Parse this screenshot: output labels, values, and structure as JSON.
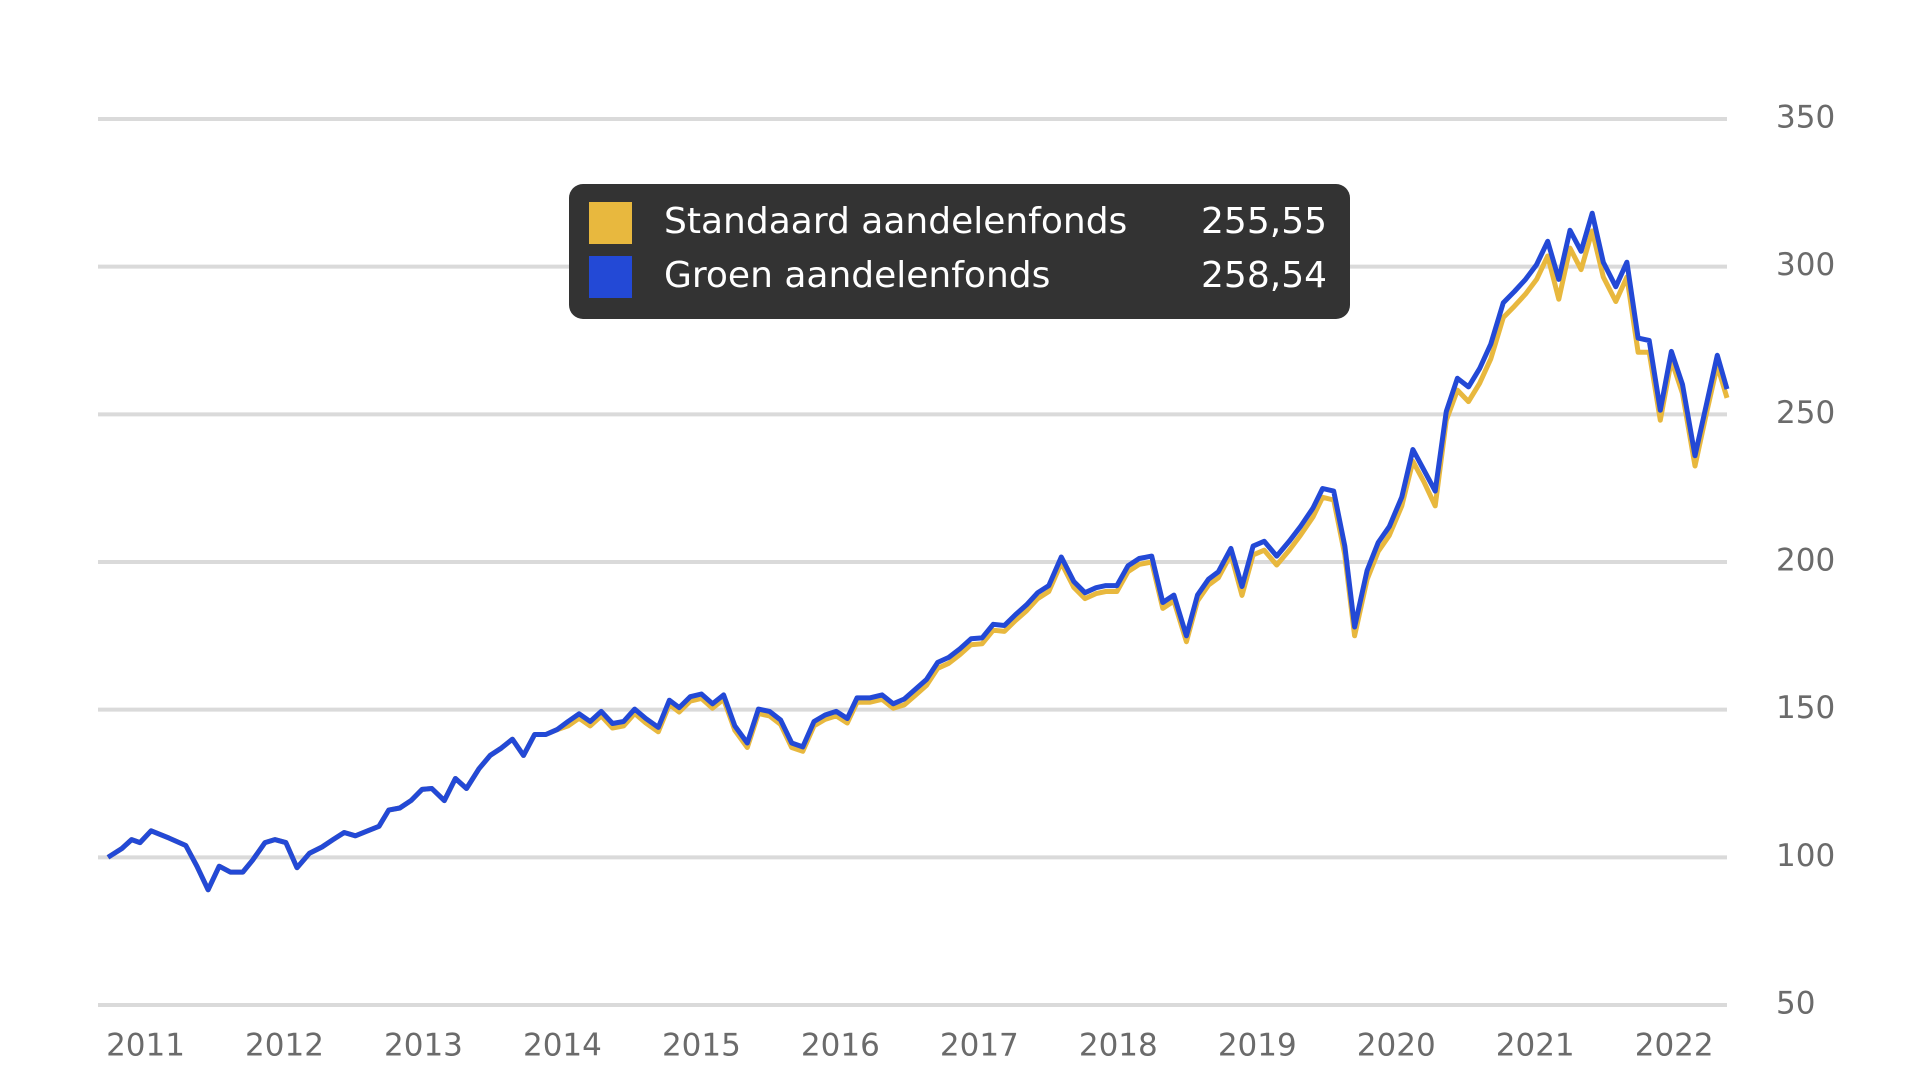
{
  "chart_data": {
    "type": "line",
    "x": [
      2010.73,
      2010.83,
      2010.9,
      2010.96,
      2011.04,
      2011.17,
      2011.29,
      2011.37,
      2011.45,
      2011.53,
      2011.61,
      2011.7,
      2011.77,
      2011.86,
      2011.93,
      2012.01,
      2012.09,
      2012.18,
      2012.27,
      2012.35,
      2012.43,
      2012.51,
      2012.59,
      2012.68,
      2012.75,
      2012.83,
      2012.91,
      2012.99,
      2013.06,
      2013.15,
      2013.23,
      2013.31,
      2013.4,
      2013.48,
      2013.56,
      2013.64,
      2013.72,
      2013.8,
      2013.88,
      2013.96,
      2014.04,
      2014.12,
      2014.2,
      2014.28,
      2014.36,
      2014.44,
      2014.52,
      2014.6,
      2014.69,
      2014.77,
      2014.84,
      2014.92,
      2015.0,
      2015.08,
      2015.16,
      2015.24,
      2015.33,
      2015.41,
      2015.49,
      2015.57,
      2015.65,
      2015.73,
      2015.81,
      2015.89,
      2015.97,
      2016.05,
      2016.12,
      2016.21,
      2016.3,
      2016.38,
      2016.46,
      2016.54,
      2016.62,
      2016.7,
      2016.78,
      2016.86,
      2016.94,
      2017.02,
      2017.1,
      2017.18,
      2017.26,
      2017.34,
      2017.42,
      2017.5,
      2017.59,
      2017.68,
      2017.76,
      2017.84,
      2017.91,
      2017.99,
      2018.07,
      2018.15,
      2018.24,
      2018.32,
      2018.4,
      2018.49,
      2018.57,
      2018.65,
      2018.72,
      2018.81,
      2018.89,
      2018.97,
      2019.05,
      2019.14,
      2019.23,
      2019.31,
      2019.4,
      2019.47,
      2019.55,
      2019.63,
      2019.7,
      2019.79,
      2019.87,
      2019.95,
      2020.04,
      2020.12,
      2020.2,
      2020.28,
      2020.36,
      2020.44,
      2020.52,
      2020.6,
      2020.68,
      2020.77,
      2020.85,
      2020.93,
      2021.01,
      2021.09,
      2021.17,
      2021.25,
      2021.33,
      2021.41,
      2021.49,
      2021.58,
      2021.66,
      2021.74,
      2021.82,
      2021.9,
      2021.98,
      2022.06,
      2022.15,
      2022.23,
      2022.31,
      2022.38
    ],
    "series": [
      {
        "name": "Standaard aandelenfonds",
        "color": "#e8b83e",
        "values": [
          100,
          103,
          106,
          105,
          109,
          106.5,
          104,
          97,
          89,
          97,
          95,
          95,
          99,
          105,
          106,
          105,
          96.5,
          101.4,
          103.5,
          106,
          108.4,
          107.3,
          108.8,
          110.5,
          116,
          116.7,
          119.2,
          123,
          123.3,
          119.2,
          126.7,
          123.3,
          130,
          134.5,
          137,
          140,
          134.5,
          141.6,
          141.6,
          143.2,
          144.5,
          147.1,
          144.5,
          147.9,
          143.8,
          144.5,
          148.7,
          145.5,
          142.5,
          151.7,
          149.2,
          152.9,
          153.8,
          150.5,
          153.5,
          143,
          137.2,
          148.7,
          147.9,
          145,
          137.2,
          135.9,
          144.5,
          146.7,
          147.9,
          145.5,
          152.5,
          152.5,
          153.5,
          150.5,
          151.6,
          154.9,
          158.2,
          164,
          165.7,
          168.6,
          172,
          172.3,
          176.9,
          176.5,
          180.2,
          183.5,
          187.6,
          190,
          199.7,
          191.4,
          187.6,
          189.3,
          190,
          190,
          196.7,
          199.2,
          200,
          184.3,
          186.8,
          173,
          186.8,
          192.2,
          194.7,
          202.6,
          188.7,
          202.4,
          204,
          199,
          204,
          209,
          215.2,
          221.9,
          221,
          202.4,
          175,
          194.1,
          203.6,
          209,
          219,
          234.1,
          227.1,
          219,
          248,
          258.2,
          254.3,
          260.5,
          268.8,
          282.8,
          286.6,
          290.7,
          295.7,
          303.6,
          289,
          306.3,
          299,
          312.1,
          296.5,
          288.2,
          296.5,
          271,
          271,
          248,
          268.3,
          257.1,
          232.5,
          250,
          266.5,
          255.55
        ]
      },
      {
        "name": "Groen aandelenfonds",
        "color": "#2349d6",
        "values": [
          100,
          103,
          106,
          105,
          109,
          106.5,
          104,
          97,
          89,
          97,
          95,
          95,
          99,
          105,
          106,
          105,
          96.5,
          101.4,
          103.5,
          106,
          108.4,
          107.3,
          108.8,
          110.5,
          116,
          116.7,
          119.2,
          123,
          123.3,
          119.2,
          126.7,
          123.3,
          130,
          134.5,
          137,
          140,
          134.5,
          141.6,
          141.6,
          143.2,
          146,
          148.6,
          146,
          149.4,
          145.3,
          146,
          150.2,
          147,
          144,
          153.2,
          150.7,
          154.4,
          155.3,
          152,
          155,
          144.5,
          138.7,
          150.2,
          149.4,
          146.5,
          138.7,
          137.4,
          146,
          148.2,
          149.4,
          147,
          154,
          154,
          155,
          152,
          153.6,
          156.9,
          160.2,
          166,
          167.7,
          170.6,
          174,
          174.3,
          178.9,
          178.5,
          182.2,
          185.5,
          189.6,
          192,
          201.7,
          193.4,
          189.6,
          191.3,
          192,
          192,
          198.7,
          201.2,
          202,
          186.3,
          188.8,
          175,
          188.8,
          194.2,
          196.7,
          204.6,
          191.7,
          205.4,
          207,
          202,
          207,
          212,
          218.2,
          224.9,
          224,
          205.4,
          178,
          197.1,
          206.6,
          212,
          222,
          238.1,
          231.1,
          224,
          251,
          262.2,
          259.3,
          265.5,
          273.8,
          287.8,
          291.6,
          295.7,
          300.7,
          308.6,
          295.7,
          312.3,
          305.2,
          318.1,
          301.5,
          293.2,
          301.5,
          275.8,
          275,
          251.4,
          271.3,
          260.1,
          236,
          253,
          270,
          258.54
        ]
      }
    ],
    "tooltip": {
      "values": [
        255.55,
        258.54
      ],
      "value_labels": [
        "255,55",
        "258,54"
      ]
    },
    "xlim": [
      2010.73,
      2022.38
    ],
    "xticks": [
      2011,
      2012,
      2013,
      2014,
      2015,
      2016,
      2017,
      2018,
      2019,
      2020,
      2021,
      2022
    ],
    "ylim": [
      50,
      350
    ],
    "yticks": [
      50,
      100,
      150,
      200,
      250,
      300,
      350
    ],
    "grid": true
  }
}
